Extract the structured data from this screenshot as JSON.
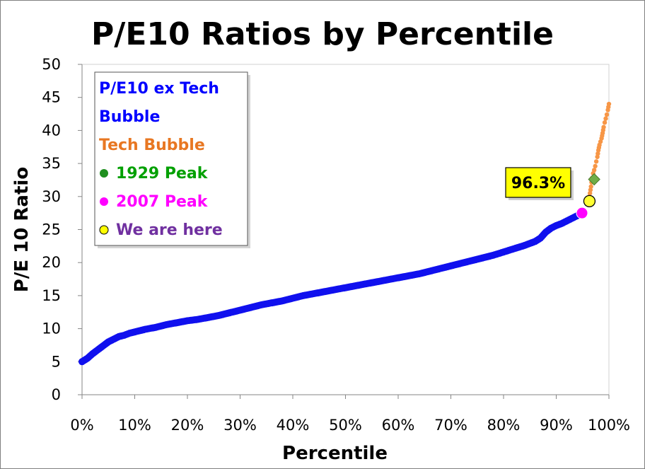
{
  "chart_data": {
    "type": "scatter",
    "title": "P/E10 Ratios by Percentile",
    "xlabel": "Percentile",
    "ylabel": "P/E 10 Ratio",
    "xlim": [
      0,
      100
    ],
    "ylim": [
      0,
      50
    ],
    "x_ticks": [
      "0%",
      "10%",
      "20%",
      "30%",
      "40%",
      "50%",
      "60%",
      "70%",
      "80%",
      "90%",
      "100%"
    ],
    "y_ticks": [
      "0",
      "5",
      "10",
      "15",
      "20",
      "25",
      "30",
      "35",
      "40",
      "45",
      "50"
    ],
    "grid": false,
    "legend_position": "top-left",
    "legend": [
      {
        "label_lines": [
          "P/E10 ex Tech",
          "Bubble"
        ],
        "color": "#0000FF",
        "marker": "none"
      },
      {
        "label_lines": [
          "Tech Bubble"
        ],
        "color": "#E87722",
        "marker": "none"
      },
      {
        "label_lines": [
          "1929 Peak"
        ],
        "color": "#00A000",
        "marker": "circle",
        "marker_color": "#1F8F1F"
      },
      {
        "label_lines": [
          "2007 Peak"
        ],
        "color": "#FF00FF",
        "marker": "circle",
        "marker_color": "#FF00FF"
      },
      {
        "label_lines": [
          "We are here"
        ],
        "color": "#7030A0",
        "marker": "circle",
        "marker_color": "#FFFF00"
      }
    ],
    "series": [
      {
        "name": "P/E10 ex Tech Bubble",
        "color": "#1010EE",
        "x": [
          0,
          1,
          2,
          3,
          4,
          5,
          6,
          7,
          8,
          9,
          10,
          12,
          14,
          16,
          18,
          20,
          22,
          24,
          26,
          28,
          30,
          32,
          34,
          36,
          38,
          40,
          42,
          44,
          46,
          48,
          50,
          52,
          54,
          56,
          58,
          60,
          62,
          64,
          66,
          68,
          70,
          72,
          74,
          76,
          78,
          80,
          82,
          84,
          86,
          87,
          88,
          89,
          90,
          91,
          92,
          93,
          94,
          95
        ],
        "y": [
          5.0,
          5.5,
          6.2,
          6.8,
          7.4,
          8.0,
          8.4,
          8.8,
          9.0,
          9.3,
          9.5,
          9.9,
          10.2,
          10.6,
          10.9,
          11.2,
          11.4,
          11.7,
          12.0,
          12.4,
          12.8,
          13.2,
          13.6,
          13.9,
          14.2,
          14.6,
          15.0,
          15.3,
          15.6,
          15.9,
          16.2,
          16.5,
          16.8,
          17.1,
          17.4,
          17.7,
          18.0,
          18.3,
          18.7,
          19.1,
          19.5,
          19.9,
          20.3,
          20.7,
          21.1,
          21.6,
          22.1,
          22.6,
          23.2,
          23.7,
          24.6,
          25.2,
          25.6,
          25.9,
          26.3,
          26.7,
          27.1,
          27.5
        ]
      },
      {
        "name": "Tech Bubble",
        "color": "#F79646",
        "x": [
          96.3,
          96.6,
          96.8,
          97.0,
          97.2,
          97.4,
          97.6,
          97.8,
          98.0,
          98.2,
          98.4,
          98.6,
          98.8,
          99.0,
          99.2,
          99.4,
          99.6,
          99.8,
          100.0
        ],
        "y": [
          30.0,
          31.5,
          32.8,
          33.5,
          34.0,
          34.6,
          35.3,
          36.0,
          37.0,
          37.8,
          38.3,
          38.8,
          39.6,
          40.5,
          41.2,
          41.8,
          42.4,
          43.1,
          44.0
        ]
      },
      {
        "name": "1929 Peak",
        "color": "#70AD47",
        "x": [
          97.2
        ],
        "y": [
          32.6
        ]
      },
      {
        "name": "2007 Peak",
        "color": "#FF00FF",
        "x": [
          94.9
        ],
        "y": [
          27.5
        ]
      },
      {
        "name": "We are here",
        "color": "#FFFF33",
        "x": [
          96.3
        ],
        "y": [
          29.3
        ]
      }
    ],
    "annotations": [
      {
        "text": "96.3%",
        "x": 96.3,
        "y": 29.3,
        "background": "#FFFF00"
      }
    ]
  }
}
